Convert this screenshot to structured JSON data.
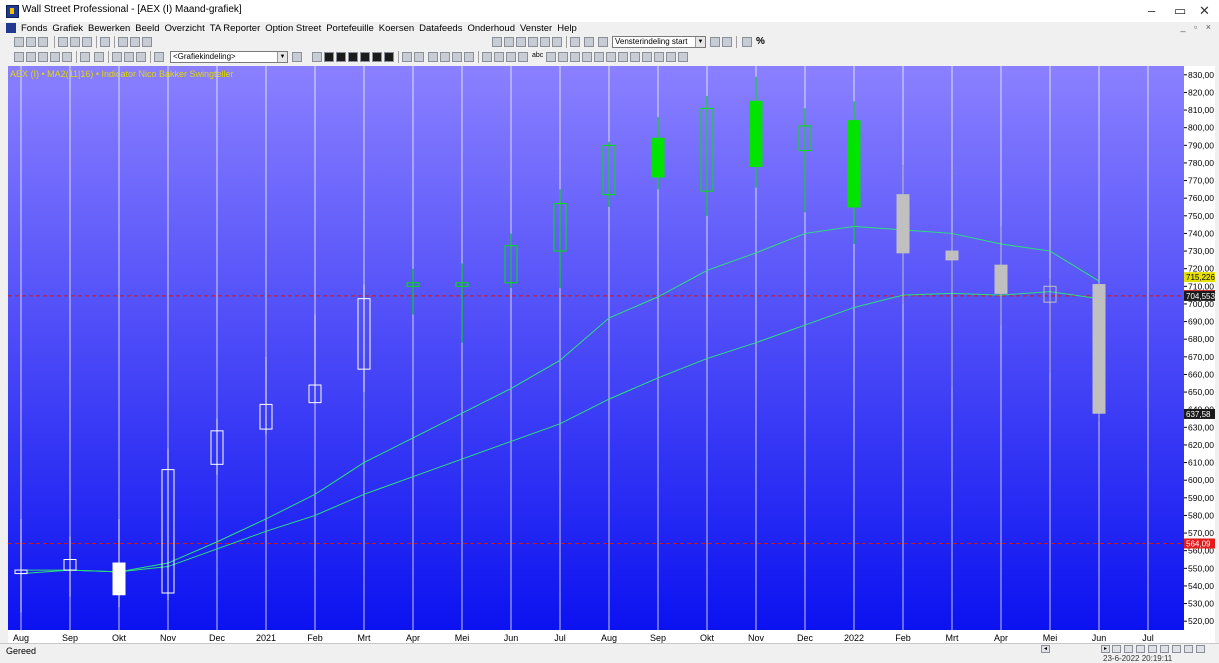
{
  "window": {
    "title": "Wall Street Professional - [AEX (I) Maand-grafiek]",
    "controls": [
      "–",
      "▭",
      "✕"
    ]
  },
  "menu": {
    "items": [
      "Fonds",
      "Grafiek",
      "Bewerken",
      "Beeld",
      "Overzicht",
      "TA Reporter",
      "Option Street",
      "Portefeuille",
      "Koersen",
      "Datafeeds",
      "Onderhoud",
      "Venster",
      "Help"
    ],
    "mdi_controls": "_ ▫ ×"
  },
  "toolbar": {
    "layout_combo": "Vensterindeling start",
    "chart_layout_combo": "<Grafiekindeling>",
    "percent_label": "%",
    "text_tool_label": "abc"
  },
  "colors": {
    "background_top": "#8a80ff",
    "background_bottom": "#0b12f0",
    "up_candle": "#00e400",
    "down_candle": "#c0c0c0",
    "ma_line": "#2de07a",
    "hline": "#d01818",
    "markers": "#ff4a4a"
  },
  "chart_data": {
    "type": "candlestick",
    "legend": "AEX (I) • MA2(11|16) • Indicator Nico Bakker Swingteller",
    "x_labels": [
      "Aug",
      "Sep",
      "Okt",
      "Nov",
      "Dec",
      "2021",
      "Feb",
      "Mrt",
      "Apr",
      "Mei",
      "Jun",
      "Jul",
      "Aug",
      "Sep",
      "Okt",
      "Nov",
      "Dec",
      "2022",
      "Feb",
      "Mrt",
      "Apr",
      "Mei",
      "Jun",
      "Jul"
    ],
    "ylim": [
      515,
      835
    ],
    "y_ticks": [
      520,
      530,
      540,
      550,
      560,
      570,
      580,
      590,
      600,
      610,
      620,
      630,
      640,
      650,
      660,
      670,
      680,
      690,
      700,
      710,
      720,
      730,
      740,
      750,
      760,
      770,
      780,
      790,
      800,
      810,
      820,
      830
    ],
    "y_tick_labels": [
      "520,00",
      "530,00",
      "540,00",
      "550,00",
      "560,00",
      "570,00",
      "580,00",
      "590,00",
      "600,00",
      "610,00",
      "620,00",
      "630,00",
      "640,00",
      "650,00",
      "660,00",
      "670,00",
      "680,00",
      "690,00",
      "700,00",
      "710,00",
      "720,00",
      "730,00",
      "740,00",
      "750,00",
      "760,00",
      "770,00",
      "780,00",
      "790,00",
      "800,00",
      "810,00",
      "820,00",
      "830,00"
    ],
    "candles": [
      {
        "x": "Aug",
        "open": 549,
        "high": 578,
        "low": 525,
        "close": 547,
        "filled": false
      },
      {
        "x": "Sep",
        "open": 549,
        "high": 568,
        "low": 534,
        "close": 555,
        "filled": false
      },
      {
        "x": "Okt",
        "open": 553,
        "high": 578,
        "low": 528,
        "close": 535,
        "filled": true
      },
      {
        "x": "Nov",
        "open": 536,
        "high": 618,
        "low": 532,
        "close": 606,
        "filled": false
      },
      {
        "x": "Dec",
        "open": 609,
        "high": 635,
        "low": 603,
        "close": 628,
        "filled": false
      },
      {
        "x": "2021",
        "open": 629,
        "high": 670,
        "low": 626,
        "close": 643,
        "filled": false
      },
      {
        "x": "Feb",
        "open": 644,
        "high": 694,
        "low": 644,
        "close": 654,
        "filled": false
      },
      {
        "x": "Mrt",
        "open": 663,
        "high": 711,
        "low": 650,
        "close": 703,
        "filled": false
      },
      {
        "x": "Apr",
        "open": 710,
        "high": 720,
        "low": 694,
        "close": 712,
        "filled": false
      },
      {
        "x": "Mei",
        "open": 710,
        "high": 723,
        "low": 678,
        "close": 712,
        "filled": false
      },
      {
        "x": "Jun",
        "open": 712,
        "high": 740,
        "low": 709,
        "close": 733,
        "filled": false
      },
      {
        "x": "Jul",
        "open": 730,
        "high": 765,
        "low": 709,
        "close": 757,
        "filled": false
      },
      {
        "x": "Aug",
        "open": 762,
        "high": 792,
        "low": 755,
        "close": 790,
        "filled": false
      },
      {
        "x": "Sep",
        "open": 794,
        "high": 806,
        "low": 765,
        "close": 772,
        "filled": true
      },
      {
        "x": "Okt",
        "open": 764,
        "high": 818,
        "low": 750,
        "close": 811,
        "filled": false
      },
      {
        "x": "Nov",
        "open": 815,
        "high": 829,
        "low": 766,
        "close": 778,
        "filled": true
      },
      {
        "x": "Dec",
        "open": 787,
        "high": 811,
        "low": 752,
        "close": 801,
        "filled": false
      },
      {
        "x": "2022",
        "open": 804,
        "high": 815,
        "low": 734,
        "close": 755,
        "filled": true
      },
      {
        "x": "Feb",
        "open": 762,
        "high": 779,
        "low": 700,
        "close": 729,
        "filled": true
      },
      {
        "x": "Mrt",
        "open": 730,
        "high": 741,
        "low": 653,
        "close": 725,
        "filled": true
      },
      {
        "x": "Apr",
        "open": 722,
        "high": 744,
        "low": 688,
        "close": 706,
        "filled": true
      },
      {
        "x": "Mei",
        "open": 701,
        "high": 714,
        "low": 661,
        "close": 710,
        "filled": false
      },
      {
        "x": "Jun",
        "open": 711,
        "high": 712,
        "low": 633,
        "close": 638,
        "filled": true
      }
    ],
    "series": [
      {
        "values": [
          549,
          549,
          548,
          553,
          565,
          578,
          592,
          610,
          624,
          638,
          652,
          668,
          692,
          704,
          719,
          729,
          740,
          744,
          742,
          740,
          734,
          730,
          713
        ]
      },
      {
        "values": [
          547,
          549,
          548,
          551,
          561,
          571,
          580,
          592,
          602,
          612,
          622,
          632,
          646,
          658,
          669,
          678,
          688,
          698,
          705,
          706,
          705,
          707,
          703
        ]
      }
    ],
    "hlines": [
      {
        "value": 704.553,
        "label": "704,553"
      },
      {
        "value": 564.09,
        "label": "564,09"
      }
    ],
    "right_labels": [
      {
        "value": 715.226,
        "label": "715,226"
      },
      {
        "value": 705.01,
        "label": "705,01"
      },
      {
        "value": 704.553,
        "label": "704,553"
      },
      {
        "value": 637.58,
        "label": "637,58"
      },
      {
        "value": 564.09,
        "label": "564,09"
      }
    ]
  },
  "status": {
    "text": "Gereed",
    "datetime": "23-6-2022 20:19:11"
  }
}
